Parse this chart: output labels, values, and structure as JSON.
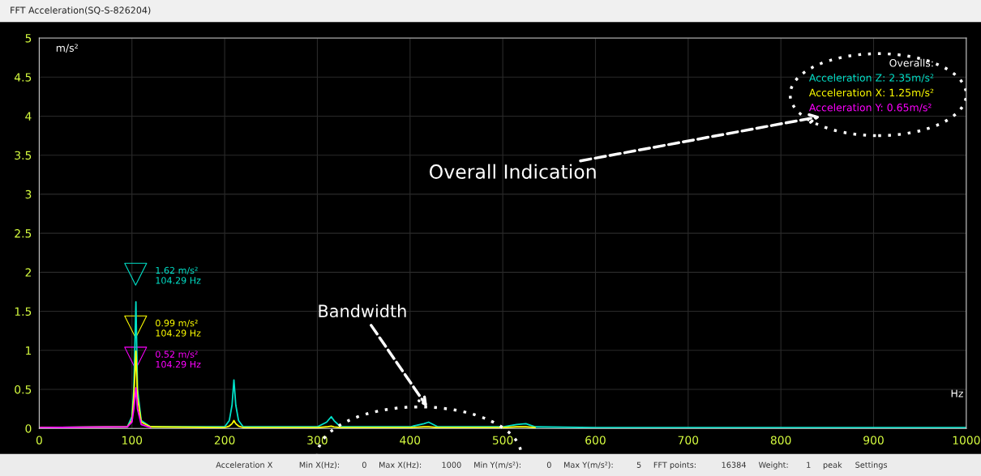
{
  "chart_data": {
    "type": "line",
    "title": "FFT Acceleration(SQ-S-826204)",
    "xlabel": "Hz",
    "ylabel": "m/s²",
    "x": [
      0,
      95,
      100,
      102,
      104.29,
      106,
      110,
      120,
      200,
      205,
      208,
      210,
      212,
      215,
      220,
      300,
      310,
      315,
      318,
      325,
      400,
      415,
      420,
      430,
      500,
      515,
      525,
      535,
      600,
      1000
    ],
    "series": [
      {
        "name": "Acceleration Z: 2.35m/s²",
        "color": "#00e0c8",
        "values": [
          0.01,
          0.02,
          0.15,
          0.5,
          1.62,
          0.5,
          0.1,
          0.02,
          0.02,
          0.1,
          0.3,
          0.62,
          0.3,
          0.1,
          0.02,
          0.02,
          0.08,
          0.15,
          0.1,
          0.02,
          0.02,
          0.06,
          0.08,
          0.02,
          0.02,
          0.05,
          0.06,
          0.02,
          0.01,
          0.01
        ]
      },
      {
        "name": "Acceleration X: 1.25m/s²",
        "color": "#ffff00",
        "values": [
          0.01,
          0.02,
          0.1,
          0.4,
          0.99,
          0.4,
          0.08,
          0.02,
          0.01,
          0.03,
          0.06,
          0.1,
          0.06,
          0.03,
          0.01,
          0.01,
          0.02,
          0.03,
          0.02,
          0.01,
          0.01,
          0.02,
          0.02,
          0.01,
          0.01,
          0.02,
          0.02,
          0.01,
          null,
          null
        ]
      },
      {
        "name": "Acceleration Y: 0.65m/s²",
        "color": "#ff00ff",
        "values": [
          0.01,
          0.02,
          0.08,
          0.25,
          0.52,
          0.25,
          0.05,
          0.01,
          null,
          null,
          null,
          null,
          null,
          null,
          null,
          null,
          null,
          null,
          null,
          null,
          null,
          null,
          null,
          null,
          null,
          null,
          null,
          null,
          null,
          null
        ]
      }
    ],
    "legend_title": "Overalls:",
    "legend": "top right",
    "xlim": [
      0,
      1000
    ],
    "ylim": [
      0,
      5
    ],
    "xticks": [
      0,
      100,
      200,
      300,
      400,
      500,
      600,
      700,
      800,
      900,
      1000
    ],
    "yticks": [
      0,
      0.5,
      1,
      1.5,
      2,
      2.5,
      3,
      3.5,
      4,
      4.5,
      5
    ],
    "grid": true,
    "annotations": [
      "1.62 m/s²\n104.29 Hz",
      "0.99 m/s²\n104.29 Hz",
      "0.52 m/s²\n104.29 Hz",
      "Overall Indication",
      "Bandwidth",
      "Acceleration X",
      "Min X(Hz):",
      "0",
      "Max X(Hz):",
      "1000",
      "Min Y(m/s²):",
      "0",
      "Max Y(m/s²):",
      "5",
      "FFT points:",
      "16384",
      "Weight:",
      "1",
      "peak",
      "Settings"
    ]
  }
}
